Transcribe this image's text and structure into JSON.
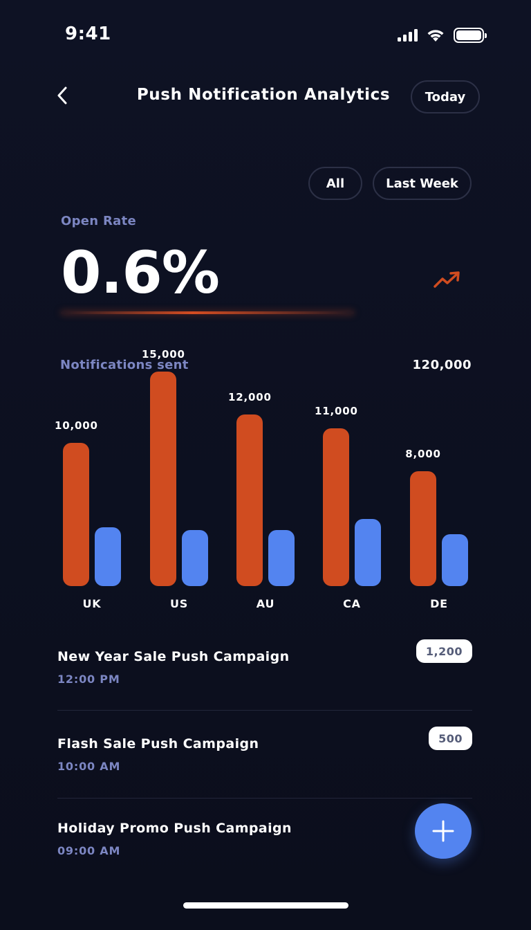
{
  "status_bar": {
    "time": "9:41"
  },
  "header": {
    "title": "Push Notification Analytics",
    "today_label": "Today"
  },
  "filters": {
    "all_label": "All",
    "last_week_label": "Last Week"
  },
  "open_rate": {
    "label": "Open Rate",
    "value": "0.6%"
  },
  "notifications_sent": {
    "label": "Notifications sent",
    "value": "120,000"
  },
  "colors": {
    "orange": "#d04c20",
    "blue": "#5384f0",
    "muted": "#7c86c2",
    "background": "#0d1021"
  },
  "chart_data": {
    "type": "bar",
    "categories": [
      "UK",
      "US",
      "AU",
      "CA",
      "DE"
    ],
    "series": [
      {
        "values": [
          10000,
          15000,
          12000,
          11000,
          8000
        ],
        "data_labels": [
          "10,000",
          "15,000",
          "12,000",
          "11,000",
          "8,000"
        ]
      },
      {
        "values": [
          4100,
          3900,
          3900,
          4700,
          3600
        ]
      }
    ],
    "title": "",
    "xlabel": "",
    "ylabel": "",
    "grid": false
  },
  "campaigns": [
    {
      "name": "New Year Sale Push Campaign",
      "time": "12:00 PM",
      "count": "1,200"
    },
    {
      "name": "Flash Sale Push Campaign",
      "time": "10:00 AM",
      "count": "500"
    },
    {
      "name": "Holiday Promo Push Campaign",
      "time": "09:00 AM"
    }
  ],
  "icons": {
    "back": "chevron-left-icon",
    "trend": "trending-up-icon",
    "add": "plus-icon"
  }
}
